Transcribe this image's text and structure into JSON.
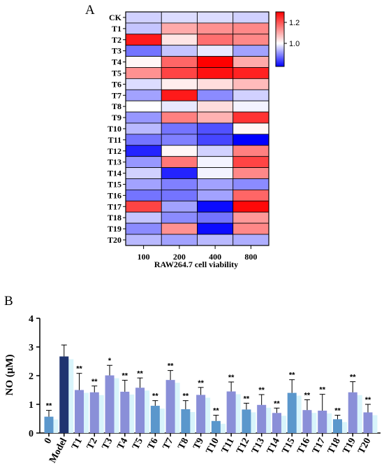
{
  "chart_data": [
    {
      "type": "heatmap",
      "panel_label": "A",
      "rows": [
        "CK",
        "T1",
        "T2",
        "T3",
        "T4",
        "T5",
        "T6",
        "T7",
        "T8",
        "T9",
        "T10",
        "T11",
        "T12",
        "T13",
        "T14",
        "T15",
        "T16",
        "T17",
        "T18",
        "T19",
        "T20"
      ],
      "columns": [
        "100",
        "200",
        "400",
        "800"
      ],
      "xlabel": "RAW264.7 cell viability",
      "values": [
        [
          0.96,
          0.97,
          0.97,
          0.96
        ],
        [
          0.95,
          1.1,
          1.13,
          1.14
        ],
        [
          1.27,
          1.03,
          1.17,
          1.14
        ],
        [
          0.88,
          0.95,
          0.98,
          0.92
        ],
        [
          1.01,
          1.18,
          1.3,
          1.1
        ],
        [
          1.13,
          1.22,
          1.28,
          1.26
        ],
        [
          0.97,
          1.02,
          1.04,
          1.08
        ],
        [
          0.92,
          1.27,
          0.9,
          0.96
        ],
        [
          1.0,
          0.98,
          1.04,
          0.99
        ],
        [
          0.91,
          1.15,
          1.09,
          1.24
        ],
        [
          0.94,
          0.88,
          0.85,
          1.01
        ],
        [
          0.88,
          0.89,
          0.84,
          0.78
        ],
        [
          0.81,
          1.01,
          0.96,
          1.15
        ],
        [
          0.91,
          1.16,
          0.99,
          1.22
        ],
        [
          0.96,
          0.81,
          0.99,
          1.14
        ],
        [
          0.92,
          0.89,
          0.92,
          0.9
        ],
        [
          0.88,
          0.88,
          0.92,
          1.18
        ],
        [
          1.22,
          0.92,
          0.79,
          1.29
        ],
        [
          0.95,
          0.9,
          0.88,
          1.12
        ],
        [
          0.9,
          1.13,
          0.79,
          1.14
        ],
        [
          0.94,
          0.92,
          0.94,
          0.93
        ]
      ],
      "colorbar": {
        "min": 0.78,
        "max": 1.3,
        "ticks": [
          1.0,
          1.2
        ],
        "tick_labels": [
          "1.0",
          "1.2"
        ],
        "low_color": "#0000ff",
        "mid_color": "#ffffff",
        "high_color": "#ff0000",
        "mid_value": 1.0
      }
    },
    {
      "type": "bar",
      "panel_label": "B",
      "ylabel": "NO (μM)",
      "ylim": [
        0,
        4
      ],
      "yticks": [
        0,
        1,
        2,
        3,
        4
      ],
      "categories": [
        "0",
        "Model",
        "T1",
        "T2",
        "T3",
        "T4",
        "T5",
        "T6",
        "T7",
        "T8",
        "T9",
        "T10",
        "T11",
        "T12",
        "T13",
        "T14",
        "T15",
        "T16",
        "T17",
        "T18",
        "T19",
        "T20"
      ],
      "values": [
        0.57,
        2.67,
        1.5,
        1.42,
        2.01,
        1.44,
        1.58,
        0.95,
        1.85,
        0.83,
        1.33,
        0.42,
        1.45,
        0.82,
        0.98,
        0.7,
        1.4,
        0.8,
        0.78,
        0.48,
        1.42,
        0.72
      ],
      "errors": [
        0.22,
        0.4,
        0.58,
        0.22,
        0.35,
        0.4,
        0.34,
        0.18,
        0.33,
        0.3,
        0.26,
        0.2,
        0.33,
        0.22,
        0.36,
        0.17,
        0.46,
        0.36,
        0.57,
        0.14,
        0.37,
        0.28
      ],
      "significance": [
        "**",
        "",
        "**",
        "**",
        "*",
        "**",
        "**",
        "**",
        "**",
        "**",
        "**",
        "**",
        "**",
        "**",
        "**",
        "**",
        "**",
        "**",
        "**",
        "**",
        "**",
        "**"
      ],
      "colors": {
        "bar": "#5b97cc",
        "model_bar": "#1f3470",
        "lavender_bar": "#8a8fd8",
        "shadow": "#d8f4fb"
      }
    }
  ]
}
